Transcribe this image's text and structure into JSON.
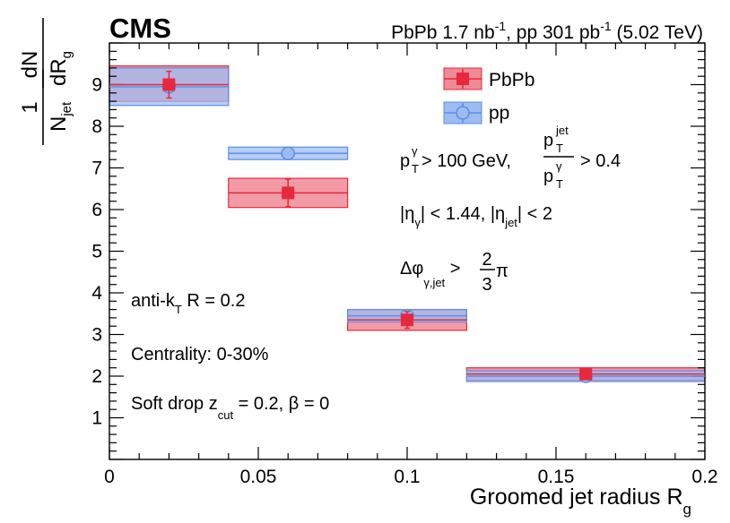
{
  "chart_data": {
    "type": "scatter",
    "experiment_label": "CMS",
    "lumi": {
      "pbpb": "PbPb 1.7 nb",
      "pbpb_exp": "-1",
      "pp": ", pp 301 pb",
      "pp_exp": "-1",
      "energy": " (5.02 TeV)"
    },
    "xlabel": "Groomed jet radius R",
    "xlabel_sub": "g",
    "ylabel": {
      "one": "1",
      "njet": "N",
      "njet_sub": "jet",
      "dn": "dN",
      "drg": "dR",
      "drg_sub": "g"
    },
    "xlim": [
      0,
      0.2
    ],
    "ylim": [
      0,
      10
    ],
    "xticks": [
      {
        "v": 0,
        "label": "0"
      },
      {
        "v": 0.05,
        "label": "0.05"
      },
      {
        "v": 0.1,
        "label": "0.1"
      },
      {
        "v": 0.15,
        "label": "0.15"
      },
      {
        "v": 0.2,
        "label": "0.2"
      }
    ],
    "yticks": [
      {
        "v": 1,
        "label": "1"
      },
      {
        "v": 2,
        "label": "2"
      },
      {
        "v": 3,
        "label": "3"
      },
      {
        "v": 4,
        "label": "4"
      },
      {
        "v": 5,
        "label": "5"
      },
      {
        "v": 6,
        "label": "6"
      },
      {
        "v": 7,
        "label": "7"
      },
      {
        "v": 8,
        "label": "8"
      },
      {
        "v": 9,
        "label": "9"
      }
    ],
    "series": [
      {
        "name": "PbPb",
        "marker": "square",
        "color": "#e8283c",
        "fill": "#f08a96",
        "points": [
          {
            "x": 0.02,
            "xlo": 0.0,
            "xhi": 0.04,
            "y": 9.0,
            "stat": 0.32,
            "syst_lo": 8.6,
            "syst_hi": 9.45
          },
          {
            "x": 0.06,
            "xlo": 0.04,
            "xhi": 0.08,
            "y": 6.4,
            "stat": 0.33,
            "syst_lo": 6.05,
            "syst_hi": 6.75
          },
          {
            "x": 0.1,
            "xlo": 0.08,
            "xhi": 0.12,
            "y": 3.35,
            "stat": 0.2,
            "syst_lo": 3.1,
            "syst_hi": 3.6
          },
          {
            "x": 0.16,
            "xlo": 0.12,
            "xhi": 0.2,
            "y": 2.05,
            "stat": 0.12,
            "syst_lo": 1.9,
            "syst_hi": 2.2
          }
        ]
      },
      {
        "name": "pp",
        "marker": "open-circle",
        "color": "#5b8fe6",
        "fill": "#9ebcf2",
        "points": [
          {
            "x": 0.02,
            "xlo": 0.0,
            "xhi": 0.04,
            "y": 8.95,
            "stat": 0.05,
            "syst_lo": 8.5,
            "syst_hi": 9.4
          },
          {
            "x": 0.06,
            "xlo": 0.04,
            "xhi": 0.08,
            "y": 7.35,
            "stat": 0.05,
            "syst_lo": 7.2,
            "syst_hi": 7.5
          },
          {
            "x": 0.1,
            "xlo": 0.08,
            "xhi": 0.12,
            "y": 3.45,
            "stat": 0.04,
            "syst_lo": 3.3,
            "syst_hi": 3.6
          },
          {
            "x": 0.16,
            "xlo": 0.12,
            "xhi": 0.2,
            "y": 2.0,
            "stat": 0.03,
            "syst_lo": 1.87,
            "syst_hi": 2.13
          }
        ]
      }
    ],
    "annotations": {
      "cut1": {
        "p": "p",
        "p_sup": "γ",
        "p_sub": "T",
        "mid": " > 100 GeV,",
        "frac_num_p": "p",
        "frac_num_sup": "jet",
        "frac_num_sub": "T",
        "frac_den_p": "p",
        "frac_den_sup": "γ",
        "frac_den_sub": "T",
        "end": "> 0.4"
      },
      "cut2": {
        "a": "|η",
        "a_sub": "γ",
        "b": "| < 1.44, |η",
        "b_sub": "jet",
        "c": "| < 2"
      },
      "cut3": {
        "a": "Δφ",
        "a_sub": "γ,jet",
        "b": " >",
        "num": "2",
        "den": "3",
        "c": "π"
      },
      "algo": {
        "a": "anti-k",
        "a_sub": "T",
        "b": " R = 0.2"
      },
      "centrality": "Centrality: 0-30%",
      "softdrop": {
        "a": "Soft drop z",
        "a_sub": "cut",
        "b": " = 0.2, β = 0"
      }
    },
    "legend_position": "top-right"
  }
}
